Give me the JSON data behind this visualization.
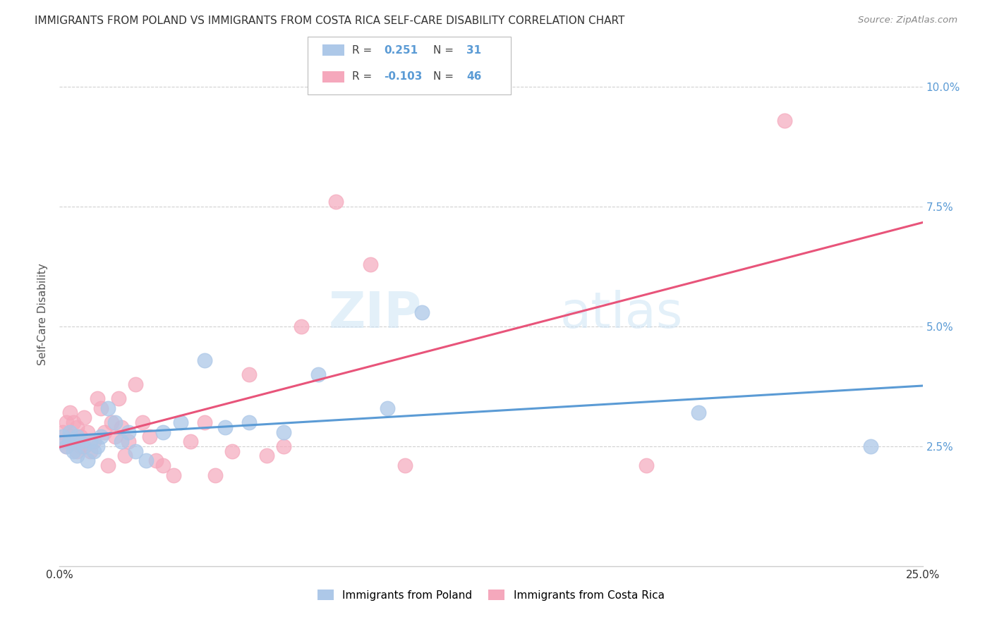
{
  "title": "IMMIGRANTS FROM POLAND VS IMMIGRANTS FROM COSTA RICA SELF-CARE DISABILITY CORRELATION CHART",
  "source": "Source: ZipAtlas.com",
  "ylabel": "Self-Care Disability",
  "xmin": 0.0,
  "xmax": 0.25,
  "ymin": 0.0,
  "ymax": 0.105,
  "yticks": [
    0.025,
    0.05,
    0.075,
    0.1
  ],
  "ytick_labels": [
    "2.5%",
    "5.0%",
    "7.5%",
    "10.0%"
  ],
  "legend_R_poland": "0.251",
  "legend_N_poland": "31",
  "legend_R_costarica": "-0.103",
  "legend_N_costarica": "46",
  "color_poland": "#adc8e8",
  "color_costarica": "#f5a8bc",
  "line_color_poland": "#5b9bd5",
  "line_color_costarica": "#e8547a",
  "watermark_zip": "ZIP",
  "watermark_atlas": "atlas",
  "poland_x": [
    0.001,
    0.002,
    0.003,
    0.003,
    0.004,
    0.005,
    0.005,
    0.006,
    0.007,
    0.008,
    0.009,
    0.01,
    0.011,
    0.012,
    0.014,
    0.016,
    0.018,
    0.02,
    0.022,
    0.025,
    0.03,
    0.035,
    0.042,
    0.048,
    0.055,
    0.065,
    0.075,
    0.095,
    0.105,
    0.185,
    0.235
  ],
  "poland_y": [
    0.027,
    0.025,
    0.028,
    0.026,
    0.024,
    0.027,
    0.023,
    0.026,
    0.025,
    0.022,
    0.026,
    0.024,
    0.025,
    0.027,
    0.033,
    0.03,
    0.026,
    0.028,
    0.024,
    0.022,
    0.028,
    0.03,
    0.043,
    0.029,
    0.03,
    0.028,
    0.04,
    0.033,
    0.053,
    0.032,
    0.025
  ],
  "costarica_x": [
    0.001,
    0.001,
    0.002,
    0.002,
    0.003,
    0.003,
    0.004,
    0.004,
    0.005,
    0.005,
    0.006,
    0.006,
    0.007,
    0.007,
    0.008,
    0.009,
    0.01,
    0.011,
    0.012,
    0.013,
    0.014,
    0.015,
    0.016,
    0.017,
    0.018,
    0.019,
    0.02,
    0.022,
    0.024,
    0.026,
    0.028,
    0.03,
    0.033,
    0.038,
    0.042,
    0.045,
    0.05,
    0.055,
    0.06,
    0.065,
    0.07,
    0.08,
    0.09,
    0.1,
    0.17,
    0.21
  ],
  "costarica_y": [
    0.028,
    0.026,
    0.03,
    0.025,
    0.027,
    0.032,
    0.026,
    0.03,
    0.024,
    0.029,
    0.027,
    0.025,
    0.031,
    0.025,
    0.028,
    0.024,
    0.026,
    0.035,
    0.033,
    0.028,
    0.021,
    0.03,
    0.027,
    0.035,
    0.029,
    0.023,
    0.026,
    0.038,
    0.03,
    0.027,
    0.022,
    0.021,
    0.019,
    0.026,
    0.03,
    0.019,
    0.024,
    0.04,
    0.023,
    0.025,
    0.05,
    0.076,
    0.063,
    0.021,
    0.021,
    0.093
  ]
}
